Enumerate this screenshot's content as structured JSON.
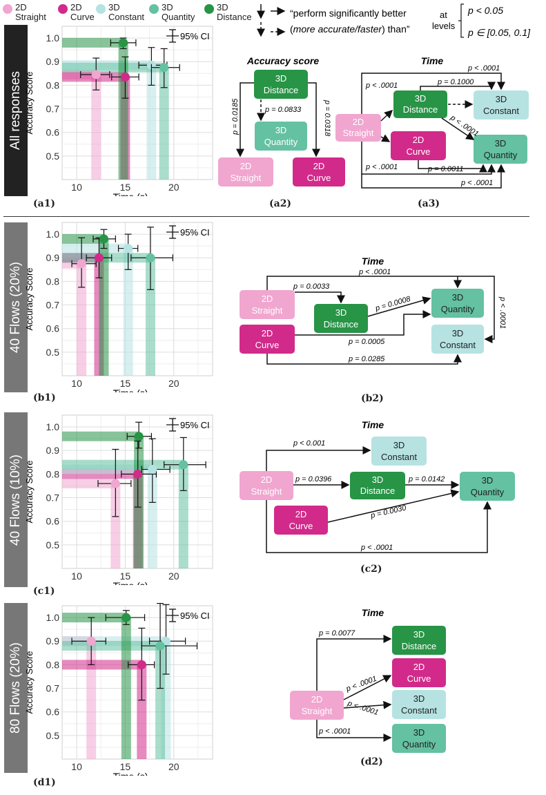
{
  "legend": [
    {
      "line1": "2D",
      "line2": "Straight",
      "color": "#f0a6cf"
    },
    {
      "line1": "2D",
      "line2": "Curve",
      "color": "#d22a8a"
    },
    {
      "line1": "3D",
      "line2": "Constant",
      "color": "#b6e2e2"
    },
    {
      "line1": "3D",
      "line2": "Quantity",
      "color": "#64c1a2"
    },
    {
      "line1": "3D",
      "line2": "Distance",
      "color": "#279446"
    }
  ],
  "key": {
    "quote_open": "“perform significantly better",
    "quote_italic": "more accurate/faster",
    "quote_close": ") than”",
    "at": "at",
    "levels": "levels",
    "level_solid": "p < 0.05",
    "level_dashed": "p ∈ [0.05, 0.1]"
  },
  "rows": [
    {
      "label": "All responses",
      "bg": "#222222"
    },
    {
      "label": "40 Flows (20%)",
      "bg": "#777777"
    },
    {
      "label": "40 Flows (10%)",
      "bg": "#777777"
    },
    {
      "label": "80 Flows (20%)",
      "bg": "#777777"
    }
  ],
  "panel_tags": {
    "a1": "(a1)",
    "a2": "(a2)",
    "a3": "(a3)",
    "b1": "(b1)",
    "b2": "(b2)",
    "c1": "(c1)",
    "c2": "(c2)",
    "d1": "(d1)",
    "d2": "(d2)"
  },
  "plot_text": {
    "ylabel": "Accuracy Score",
    "xlabel": "Time (s)",
    "ci": "95% CI"
  },
  "chart_data": [
    {
      "panel": "a1",
      "type": "scatter",
      "xlabel": "Time (s)",
      "ylabel": "Accuracy Score",
      "xlim": [
        8.5,
        24
      ],
      "ylim": [
        0.4,
        1.05
      ],
      "xticks": [
        10,
        15,
        20
      ],
      "yticks": [
        0.5,
        0.6,
        0.7,
        0.8,
        0.9,
        1.0
      ],
      "grid": true,
      "points": [
        {
          "series": "2D Straight",
          "x": 12.0,
          "y": 0.845,
          "xerr": [
            10.4,
            13.4
          ],
          "yerr": [
            0.78,
            0.915
          ]
        },
        {
          "series": "2D Curve",
          "x": 15.0,
          "y": 0.835,
          "xerr": [
            13.6,
            16.4
          ],
          "yerr": [
            0.745,
            0.92
          ]
        },
        {
          "series": "3D Constant",
          "x": 17.7,
          "y": 0.885,
          "xerr": [
            16.4,
            19.3
          ],
          "yerr": [
            0.8,
            0.96
          ]
        },
        {
          "series": "3D Quantity",
          "x": 19.0,
          "y": 0.875,
          "xerr": [
            17.7,
            20.6
          ],
          "yerr": [
            0.79,
            0.955
          ]
        },
        {
          "series": "3D Distance",
          "x": 14.8,
          "y": 0.98,
          "xerr": [
            13.5,
            16.1
          ],
          "yerr": [
            0.955,
            1.0
          ]
        }
      ]
    },
    {
      "panel": "b1",
      "type": "scatter",
      "xlabel": "Time (s)",
      "ylabel": "Accuracy Score",
      "xlim": [
        8.5,
        24
      ],
      "ylim": [
        0.4,
        1.05
      ],
      "xticks": [
        10,
        15,
        20
      ],
      "yticks": [
        0.5,
        0.6,
        0.7,
        0.8,
        0.9,
        1.0
      ],
      "grid": true,
      "points": [
        {
          "series": "2D Straight",
          "x": 10.5,
          "y": 0.875,
          "xerr": [
            9.5,
            12.0
          ],
          "yerr": [
            0.775,
            0.985
          ]
        },
        {
          "series": "2D Curve",
          "x": 12.3,
          "y": 0.9,
          "xerr": [
            11.0,
            13.6
          ],
          "yerr": [
            0.815,
            0.985
          ]
        },
        {
          "series": "3D Constant",
          "x": 15.3,
          "y": 0.94,
          "xerr": [
            14.3,
            16.3
          ],
          "yerr": [
            0.85,
            1.0
          ]
        },
        {
          "series": "3D Quantity",
          "x": 17.6,
          "y": 0.9,
          "xerr": [
            15.6,
            19.9
          ],
          "yerr": [
            0.765,
            1.03
          ]
        },
        {
          "series": "3D Distance",
          "x": 12.8,
          "y": 0.98,
          "xerr": [
            11.7,
            14.0
          ],
          "yerr": [
            0.94,
            1.02
          ]
        }
      ]
    },
    {
      "panel": "c1",
      "type": "scatter",
      "xlabel": "Time (s)",
      "ylabel": "Accuracy Score",
      "xlim": [
        8.5,
        24
      ],
      "ylim": [
        0.4,
        1.05
      ],
      "xticks": [
        10,
        15,
        20
      ],
      "yticks": [
        0.5,
        0.6,
        0.7,
        0.8,
        0.9,
        1.0
      ],
      "grid": true,
      "points": [
        {
          "series": "2D Straight",
          "x": 14.0,
          "y": 0.76,
          "xerr": [
            12.2,
            15.6
          ],
          "yerr": [
            0.62,
            0.905
          ]
        },
        {
          "series": "2D Curve",
          "x": 16.3,
          "y": 0.8,
          "xerr": [
            14.6,
            18.2
          ],
          "yerr": [
            0.66,
            0.94
          ]
        },
        {
          "series": "3D Constant",
          "x": 17.8,
          "y": 0.82,
          "xerr": [
            16.7,
            19.6
          ],
          "yerr": [
            0.68,
            0.95
          ]
        },
        {
          "series": "3D Quantity",
          "x": 21.0,
          "y": 0.84,
          "xerr": [
            19.0,
            23.3
          ],
          "yerr": [
            0.73,
            0.955
          ]
        },
        {
          "series": "3D Distance",
          "x": 16.4,
          "y": 0.96,
          "xerr": [
            15.2,
            17.7
          ],
          "yerr": [
            0.91,
            1.02
          ]
        }
      ]
    },
    {
      "panel": "d1",
      "type": "scatter",
      "xlabel": "Time (s)",
      "ylabel": "Accuracy Score",
      "xlim": [
        8.5,
        24
      ],
      "ylim": [
        0.4,
        1.05
      ],
      "xticks": [
        10,
        15,
        20
      ],
      "yticks": [
        0.5,
        0.6,
        0.7,
        0.8,
        0.9,
        1.0
      ],
      "grid": true,
      "points": [
        {
          "series": "2D Straight",
          "x": 11.5,
          "y": 0.9,
          "xerr": [
            9.5,
            13.0
          ],
          "yerr": [
            0.8,
            1.0
          ]
        },
        {
          "series": "2D Curve",
          "x": 16.7,
          "y": 0.8,
          "xerr": [
            15.3,
            18.0
          ],
          "yerr": [
            0.65,
            0.955
          ]
        },
        {
          "series": "3D Constant",
          "x": 19.2,
          "y": 0.9,
          "xerr": [
            17.5,
            21.2
          ],
          "yerr": [
            0.76,
            1.055
          ]
        },
        {
          "series": "3D Quantity",
          "x": 18.6,
          "y": 0.88,
          "xerr": [
            16.7,
            22.4
          ],
          "yerr": [
            0.7,
            1.06
          ]
        },
        {
          "series": "3D Distance",
          "x": 15.1,
          "y": 1.0,
          "xerr": [
            13.0,
            17.0
          ],
          "yerr": [
            0.97,
            1.03
          ]
        }
      ]
    }
  ],
  "diagrams": {
    "a2": {
      "title": "Accuracy score",
      "edges": [
        "p = 0.0833",
        "p = 0.0185",
        "p = 0.0318"
      ]
    },
    "a3": {
      "title": "Time",
      "edges": [
        "p < .0001",
        "p = 0.1000",
        "p < .0001",
        "p < .0001",
        "p < .0001",
        "p = 0.0011",
        "p < .0001"
      ]
    },
    "b2": {
      "title": "Time",
      "edges": [
        "p < .0001",
        "p = 0.0033",
        "p = 0.0008",
        "p < .0001",
        "p = 0.0005",
        "p = 0.0285"
      ]
    },
    "c2": {
      "title": "Time",
      "edges": [
        "p < 0.001",
        "p = 0.0396",
        "p = 0.0142",
        "p = 0.0030",
        "p < .0001"
      ]
    },
    "d2": {
      "title": "Time",
      "edges": [
        "p = 0.0077",
        "p < .0001",
        "p < .0001",
        "p < .0001"
      ]
    }
  },
  "nodes": {
    "straight": {
      "l1": "2D",
      "l2": "Straight"
    },
    "curve": {
      "l1": "2D",
      "l2": "Curve"
    },
    "constant": {
      "l1": "3D",
      "l2": "Constant"
    },
    "quantity": {
      "l1": "3D",
      "l2": "Quantity"
    },
    "distance": {
      "l1": "3D",
      "l2": "Distance"
    }
  }
}
